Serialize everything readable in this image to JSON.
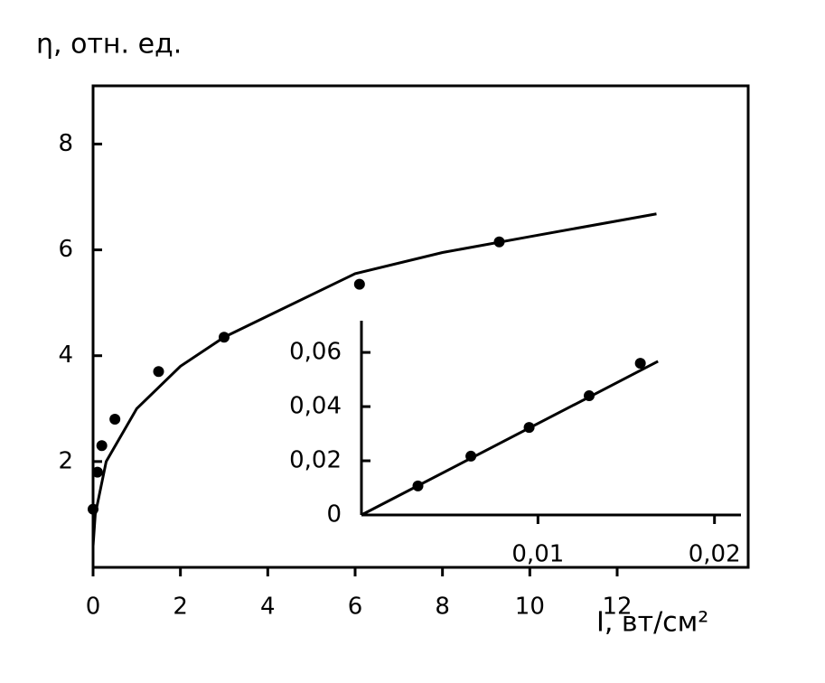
{
  "chart_data": [
    {
      "type": "scatter",
      "y_label": "η, отн. ед.",
      "x_label": "I, вт/см²",
      "xlim": [
        0,
        15
      ],
      "ylim": [
        0,
        9.1
      ],
      "xticks": [
        0,
        2,
        4,
        6,
        8,
        10,
        12
      ],
      "yticks": [
        2,
        4,
        6,
        8
      ],
      "color": "#000000",
      "frame": true,
      "points": {
        "x": [
          0,
          0.1,
          0.2,
          0.5,
          1.5,
          3.0,
          6.1,
          9.3
        ],
        "y": [
          1.1,
          1.8,
          2.3,
          2.8,
          3.7,
          4.35,
          5.35,
          6.15
        ]
      },
      "curve": {
        "x": [
          0,
          0.05,
          0.3,
          1,
          2,
          3,
          4,
          6,
          8,
          10,
          12.9
        ],
        "y": [
          0.4,
          1.0,
          2.0,
          3.0,
          3.8,
          4.35,
          4.75,
          5.55,
          5.95,
          6.25,
          6.68
        ]
      }
    },
    {
      "type": "scatter",
      "xlim": [
        0,
        0.0215
      ],
      "ylim": [
        0,
        0.0717
      ],
      "xticks": [
        {
          "value": 0.01,
          "label": "0,01"
        },
        {
          "value": 0.02,
          "label": "0,02"
        }
      ],
      "yticks": [
        0,
        {
          "value": 0.02,
          "label": "0,02"
        },
        {
          "value": 0.04,
          "label": "0,04"
        },
        {
          "value": 0.06,
          "label": "0,06"
        }
      ],
      "color": "#000000",
      "frame": false,
      "points": {
        "x": [
          0.0032,
          0.0062,
          0.0095,
          0.0129,
          0.0158
        ],
        "y": [
          0.0107,
          0.0217,
          0.0323,
          0.044,
          0.056
        ]
      },
      "curve": {
        "x": [
          0,
          0.0168
        ],
        "y": [
          0,
          0.0567
        ]
      }
    }
  ]
}
